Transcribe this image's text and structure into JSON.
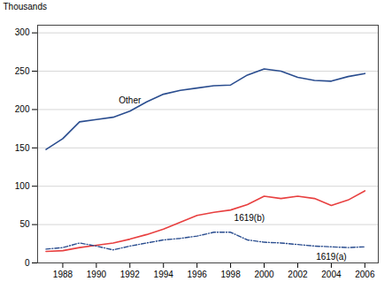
{
  "chart_data": {
    "type": "line",
    "ylabel": "Thousands",
    "x": [
      1987,
      1988,
      1989,
      1990,
      1991,
      1992,
      1993,
      1994,
      1995,
      1996,
      1997,
      1998,
      1999,
      2000,
      2001,
      2002,
      2003,
      2004,
      2005,
      2006
    ],
    "series": [
      {
        "name": "Other",
        "color": "#2a4d8f",
        "line_style": "solid",
        "values": [
          148,
          162,
          184,
          187,
          190,
          198,
          210,
          220,
          225,
          228,
          231,
          232,
          245,
          253,
          250,
          242,
          238,
          237,
          243,
          247
        ]
      },
      {
        "name": "1619(b)",
        "color": "#e84040",
        "line_style": "solid",
        "values": [
          15,
          16,
          20,
          23,
          26,
          31,
          37,
          44,
          53,
          62,
          66,
          69,
          76,
          87,
          84,
          87,
          84,
          75,
          82,
          94
        ]
      },
      {
        "name": "1619(a)",
        "color": "#2a4d8f",
        "line_style": "dashdot",
        "values": [
          18,
          20,
          26,
          22,
          17,
          22,
          26,
          30,
          32,
          35,
          40,
          40,
          30,
          27,
          26,
          24,
          22,
          21,
          20,
          21
        ]
      }
    ],
    "xlim": [
      1986.5,
      2006.8
    ],
    "ylim": [
      0,
      310
    ],
    "xticks": [
      1988,
      1990,
      1992,
      1994,
      1996,
      1998,
      2000,
      2002,
      2004,
      2006
    ],
    "yticks": [
      0,
      50,
      100,
      150,
      200,
      250,
      300
    ],
    "grid": true
  }
}
